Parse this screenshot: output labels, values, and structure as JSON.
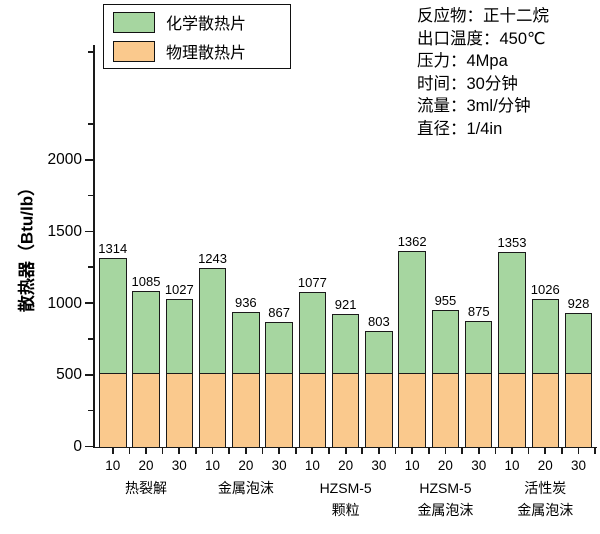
{
  "legend": {
    "items": [
      {
        "label": "化学散热片",
        "color": "#a6d6a0"
      },
      {
        "label": "物理散热片",
        "color": "#fac98d"
      }
    ]
  },
  "annotations": {
    "lines": [
      "反应物：正十二烷",
      "出口温度：450℃",
      "压力：4Mpa",
      "时间：30分钟",
      "流量：3ml/分钟",
      "直径：1/4in"
    ]
  },
  "chart_data": {
    "type": "bar",
    "stacked": true,
    "title": "",
    "ylabel": "散热器（Btu/lb）",
    "ylim": [
      0,
      2800
    ],
    "ytick_step": 500,
    "yminor_step": 250,
    "grid": false,
    "legend_position": "top-left",
    "bar_labels": "totals",
    "series": [
      {
        "name": "物理散热片",
        "color": "#fac98d",
        "role": "base",
        "value_estimated": 520
      },
      {
        "name": "化学散热片",
        "color": "#a6d6a0",
        "role": "top"
      }
    ],
    "groups": [
      {
        "label_lines": [
          "热裂解"
        ],
        "bars": [
          {
            "x": "10",
            "total": 1314
          },
          {
            "x": "20",
            "total": 1085
          },
          {
            "x": "30",
            "total": 1027
          }
        ]
      },
      {
        "label_lines": [
          "金属泡沫"
        ],
        "bars": [
          {
            "x": "10",
            "total": 1243
          },
          {
            "x": "20",
            "total": 936
          },
          {
            "x": "30",
            "total": 867
          }
        ]
      },
      {
        "label_lines": [
          "HZSM-5",
          "颗粒"
        ],
        "bars": [
          {
            "x": "10",
            "total": 1077
          },
          {
            "x": "20",
            "total": 921
          },
          {
            "x": "30",
            "total": 803
          }
        ]
      },
      {
        "label_lines": [
          "HZSM-5",
          "金属泡沫"
        ],
        "bars": [
          {
            "x": "10",
            "total": 1362
          },
          {
            "x": "20",
            "total": 955
          },
          {
            "x": "30",
            "total": 875
          }
        ]
      },
      {
        "label_lines": [
          "活性炭",
          "金属泡沫"
        ],
        "bars": [
          {
            "x": "10",
            "total": 1353
          },
          {
            "x": "20",
            "total": 1026
          },
          {
            "x": "30",
            "total": 928
          }
        ]
      }
    ]
  }
}
